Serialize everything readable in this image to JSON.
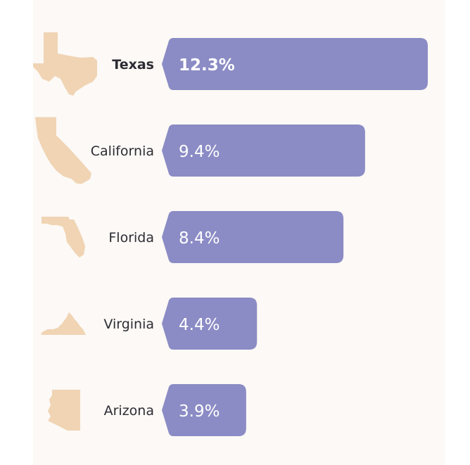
{
  "colors": {
    "bar": "#8b8bc5",
    "state_shape": "#f0d4b3",
    "background": "#fcf9f6"
  },
  "chart_data": {
    "type": "bar",
    "orientation": "horizontal",
    "categories": [
      "Texas",
      "California",
      "Florida",
      "Virginia",
      "Arizona"
    ],
    "values": [
      12.3,
      9.4,
      8.4,
      4.4,
      3.9
    ],
    "value_labels": [
      "12.3%",
      "9.4%",
      "8.4%",
      "4.4%",
      "3.9%"
    ],
    "highlighted": "Texas",
    "icons": [
      "texas-shape-icon",
      "california-shape-icon",
      "florida-shape-icon",
      "virginia-shape-icon",
      "arizona-shape-icon"
    ],
    "xlim": [
      0,
      12.3
    ],
    "grid": false,
    "legend": "none"
  }
}
